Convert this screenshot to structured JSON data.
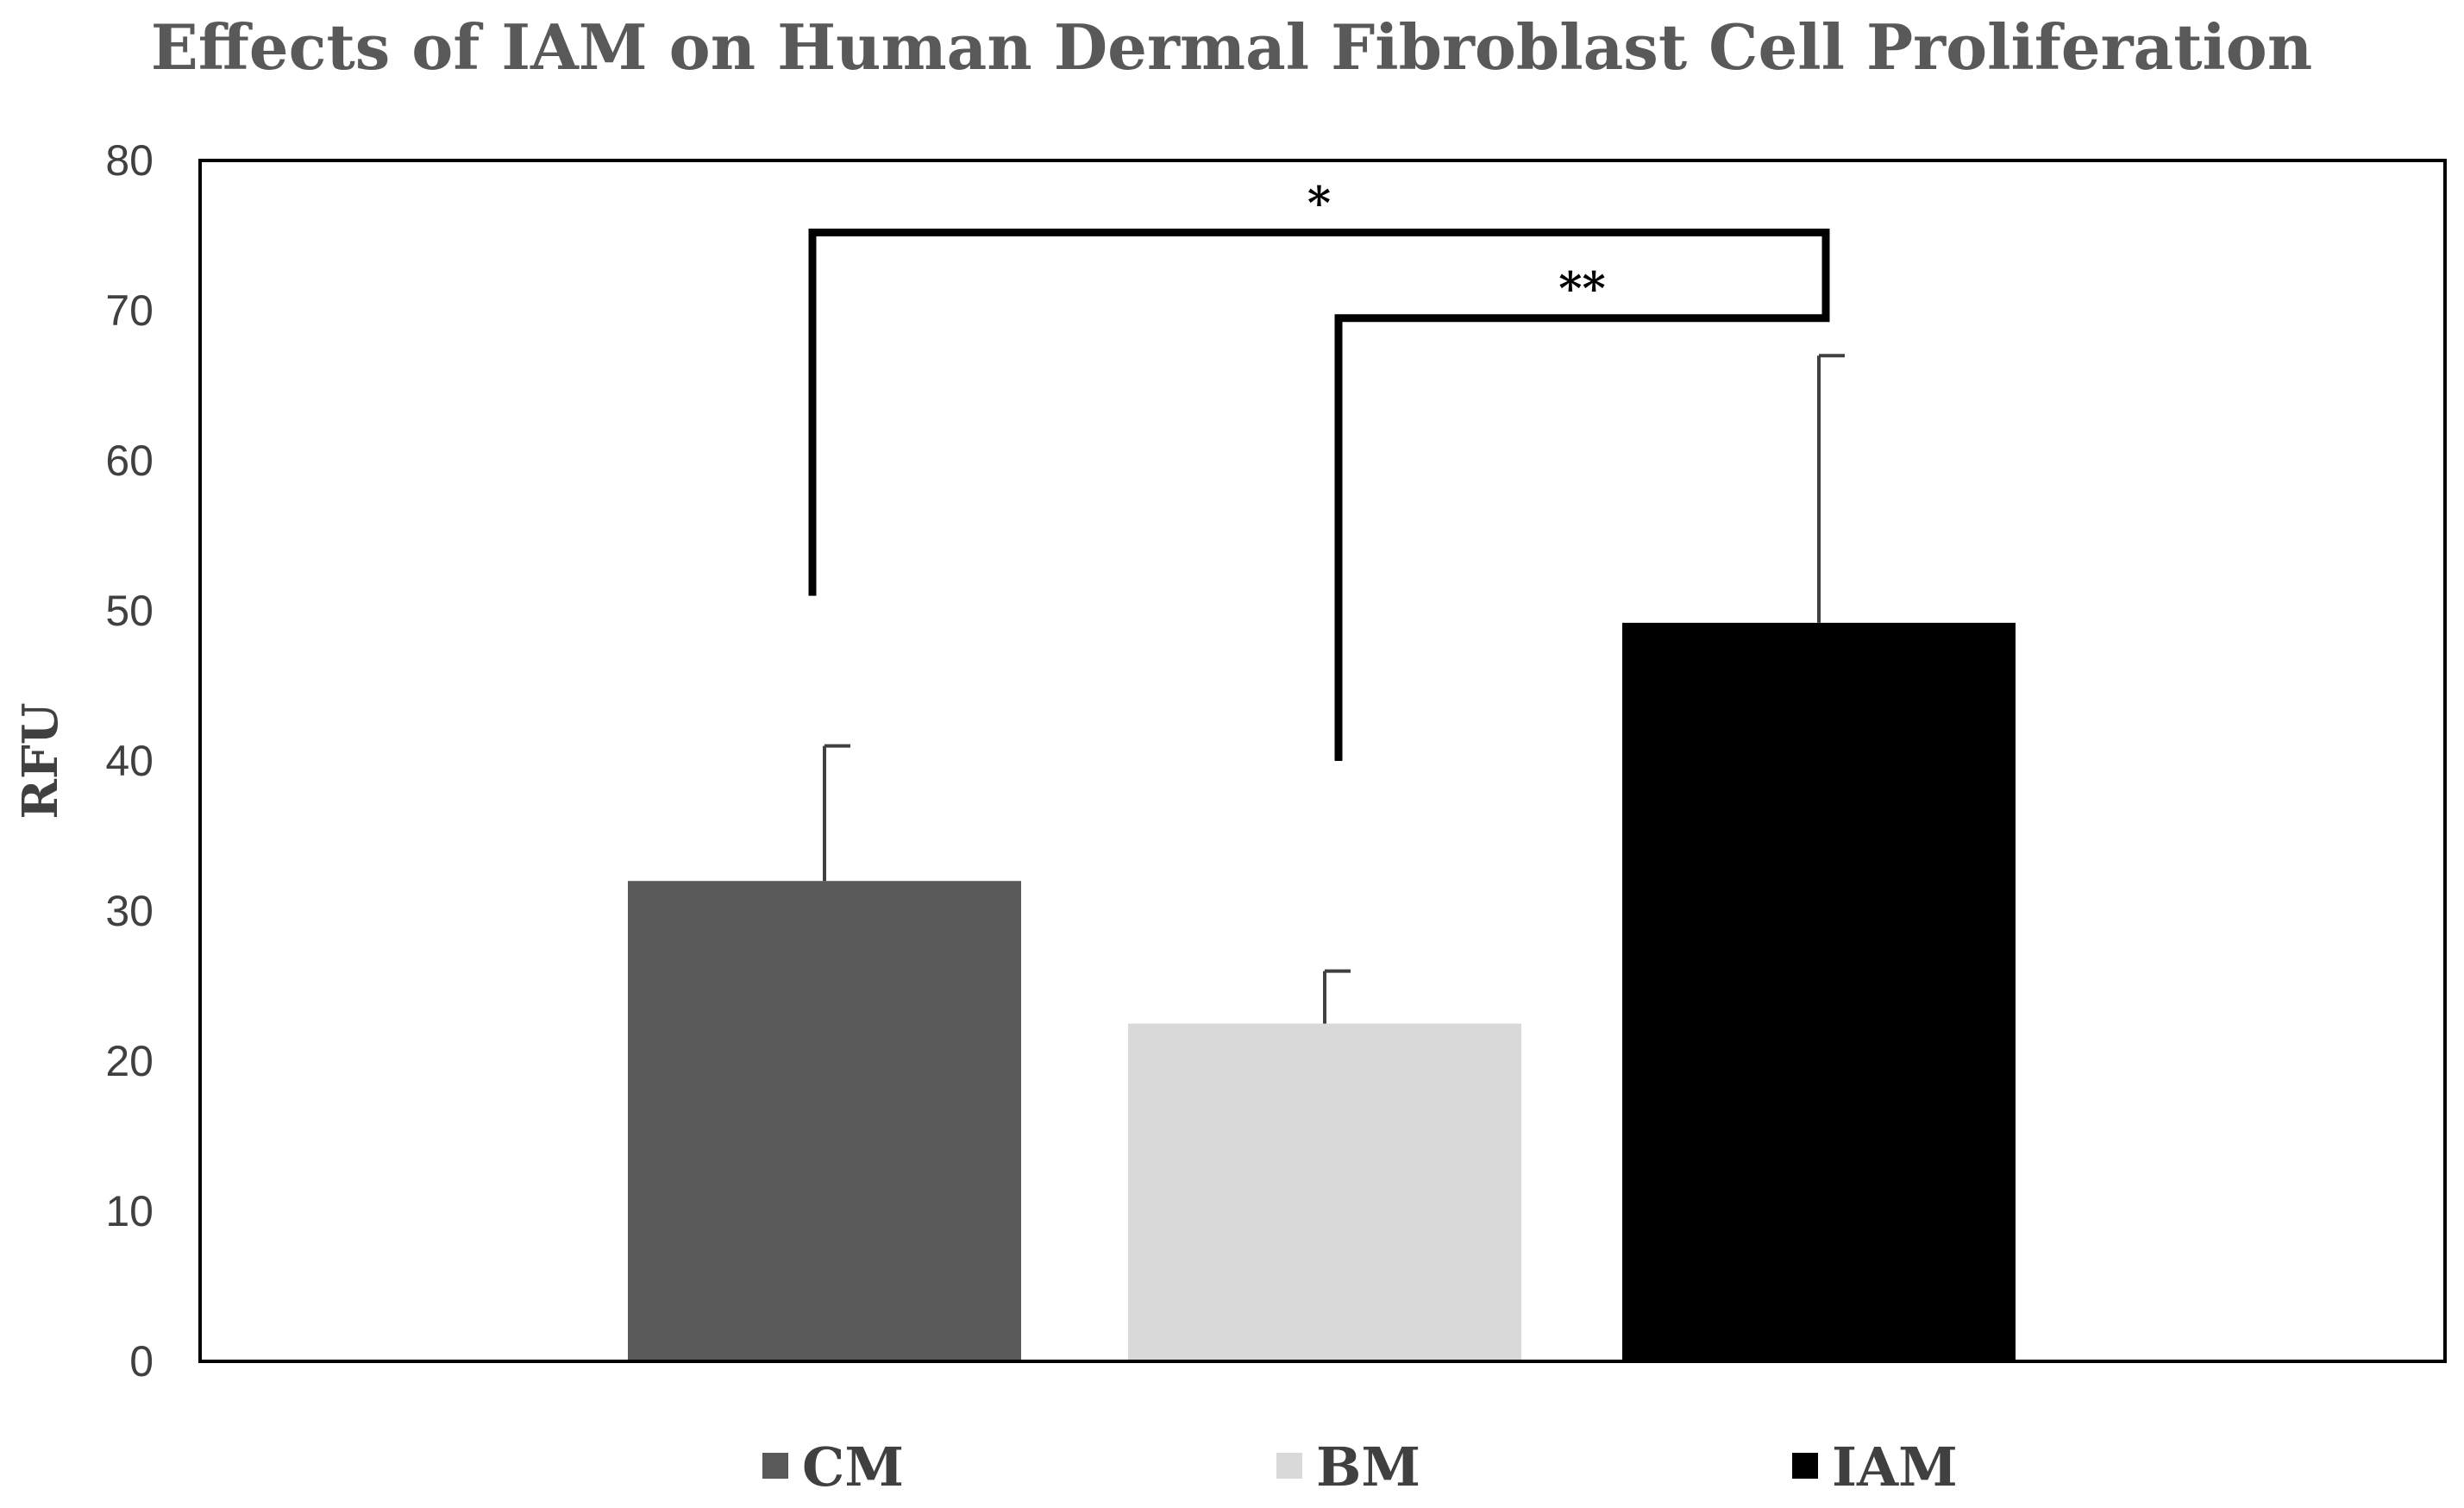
{
  "chart_data": {
    "type": "bar",
    "title": "Effects of IAM on Human  Dermal Fibroblast  Cell Proliferation",
    "xlabel": "",
    "ylabel": "RFU",
    "ylim": [
      0,
      80
    ],
    "yticks": [
      0,
      10,
      20,
      30,
      40,
      50,
      60,
      70,
      80
    ],
    "grid": false,
    "legend_position": "bottom",
    "categories": [
      "CM",
      "BM",
      "IAM"
    ],
    "values": [
      32,
      22.5,
      49.2
    ],
    "error": [
      9,
      3.5,
      17.8
    ],
    "colors": [
      "#595959",
      "#d9d9d9",
      "#000000"
    ],
    "significance": [
      {
        "from": 0,
        "to": 2,
        "label": "*",
        "y": 75.2,
        "drop_from": 51,
        "drop_to": 69.5
      },
      {
        "from": 1,
        "to": 2,
        "label": "**",
        "y": 69.5,
        "drop_from": 40,
        "drop_to": 75.2
      }
    ]
  }
}
